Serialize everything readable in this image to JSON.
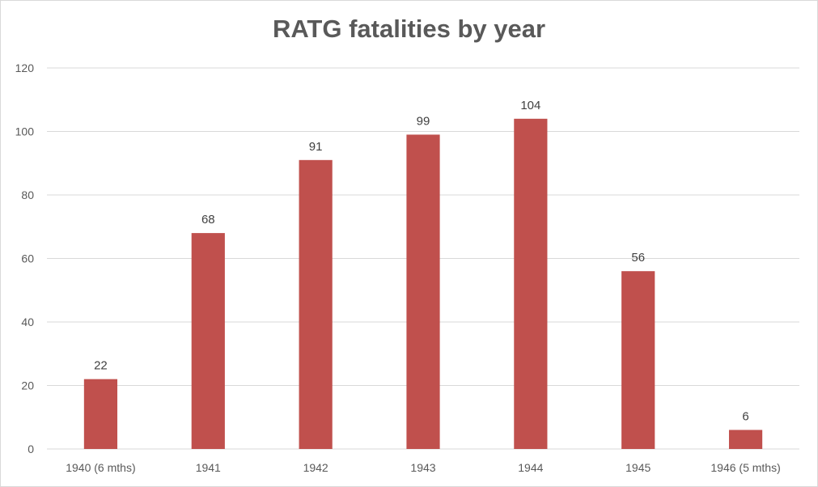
{
  "chart_data": {
    "type": "bar",
    "title": "RATG fatalities by year",
    "xlabel": "",
    "ylabel": "",
    "categories": [
      "1940 (6 mths)",
      "1941",
      "1942",
      "1943",
      "1944",
      "1945",
      "1946 (5 mths)"
    ],
    "values": [
      22,
      68,
      91,
      99,
      104,
      56,
      6
    ],
    "ylim": [
      0,
      120
    ],
    "yticks": [
      0,
      20,
      40,
      60,
      80,
      100,
      120
    ],
    "grid": true,
    "legend": "none",
    "show_data_labels": true,
    "bar_color": "#c0504d",
    "grid_color": "#d9d9d9"
  }
}
